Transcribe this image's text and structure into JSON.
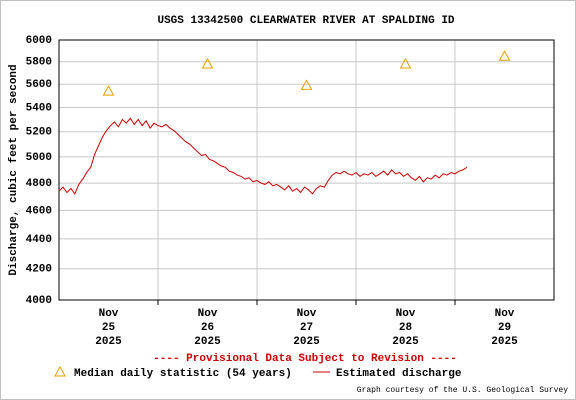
{
  "chart_data": {
    "type": "line",
    "title": "USGS 13342500 CLEARWATER RIVER AT SPALDING ID",
    "y_label": "Discharge, cubic feet per second",
    "annotation": "---- Provisional Data Subject to Revision ----",
    "credit": "Graph courtesy of the U.S. Geological Survey",
    "log_scale": true,
    "grid": true,
    "xlim": [
      0,
      5
    ],
    "ylim": [
      4000,
      6000
    ],
    "yticks": [
      4000,
      4200,
      4400,
      4600,
      4800,
      5000,
      5200,
      5400,
      5600,
      5800,
      6000
    ],
    "xticks": [
      {
        "value": 0.5,
        "label": [
          "Nov",
          "25",
          "2025"
        ]
      },
      {
        "value": 1.5,
        "label": [
          "Nov",
          "26",
          "2025"
        ]
      },
      {
        "value": 2.5,
        "label": [
          "Nov",
          "27",
          "2025"
        ]
      },
      {
        "value": 3.5,
        "label": [
          "Nov",
          "28",
          "2025"
        ]
      },
      {
        "value": 4.5,
        "label": [
          "Nov",
          "29",
          "2025"
        ]
      }
    ],
    "xgrid": [
      1,
      2,
      3,
      4
    ],
    "series": [
      {
        "name": "Median daily statistic (54 years)",
        "marker": "triangle",
        "color": "#e8a000",
        "x": [
          0.5,
          1.5,
          2.5,
          3.5,
          4.5
        ],
        "values": [
          5540,
          5780,
          5590,
          5780,
          5850
        ]
      },
      {
        "name": "Estimated discharge",
        "marker": "line",
        "color": "#cc0000",
        "x": [
          0.0,
          0.04,
          0.08,
          0.12,
          0.16,
          0.2,
          0.24,
          0.28,
          0.32,
          0.36,
          0.4,
          0.44,
          0.48,
          0.52,
          0.56,
          0.6,
          0.64,
          0.68,
          0.72,
          0.76,
          0.8,
          0.84,
          0.88,
          0.92,
          0.96,
          1.0,
          1.04,
          1.08,
          1.12,
          1.16,
          1.2,
          1.24,
          1.28,
          1.32,
          1.36,
          1.4,
          1.44,
          1.48,
          1.52,
          1.56,
          1.6,
          1.64,
          1.68,
          1.72,
          1.76,
          1.8,
          1.84,
          1.88,
          1.92,
          1.96,
          2.0,
          2.04,
          2.08,
          2.12,
          2.16,
          2.2,
          2.24,
          2.28,
          2.32,
          2.36,
          2.4,
          2.44,
          2.48,
          2.52,
          2.56,
          2.6,
          2.64,
          2.68,
          2.72,
          2.76,
          2.8,
          2.84,
          2.88,
          2.92,
          2.96,
          3.0,
          3.04,
          3.08,
          3.12,
          3.16,
          3.2,
          3.24,
          3.28,
          3.32,
          3.36,
          3.4,
          3.44,
          3.48,
          3.52,
          3.56,
          3.6,
          3.64,
          3.68,
          3.72,
          3.76,
          3.8,
          3.84,
          3.88,
          3.92,
          3.96,
          4.0,
          4.04,
          4.08,
          4.12
        ],
        "values": [
          4740,
          4770,
          4730,
          4760,
          4720,
          4790,
          4830,
          4880,
          4920,
          5020,
          5090,
          5160,
          5210,
          5250,
          5280,
          5240,
          5300,
          5270,
          5310,
          5260,
          5300,
          5250,
          5290,
          5230,
          5270,
          5250,
          5240,
          5260,
          5230,
          5210,
          5180,
          5150,
          5120,
          5100,
          5070,
          5040,
          5010,
          5020,
          4980,
          4970,
          4950,
          4930,
          4920,
          4890,
          4880,
          4860,
          4850,
          4830,
          4840,
          4810,
          4820,
          4800,
          4790,
          4810,
          4780,
          4790,
          4770,
          4750,
          4780,
          4740,
          4760,
          4730,
          4770,
          4750,
          4720,
          4760,
          4780,
          4770,
          4820,
          4860,
          4880,
          4870,
          4890,
          4870,
          4860,
          4880,
          4850,
          4870,
          4860,
          4880,
          4850,
          4870,
          4890,
          4860,
          4900,
          4870,
          4880,
          4850,
          4870,
          4840,
          4820,
          4850,
          4810,
          4840,
          4830,
          4860,
          4840,
          4870,
          4860,
          4880,
          4870,
          4890,
          4900,
          4920
        ]
      }
    ]
  }
}
